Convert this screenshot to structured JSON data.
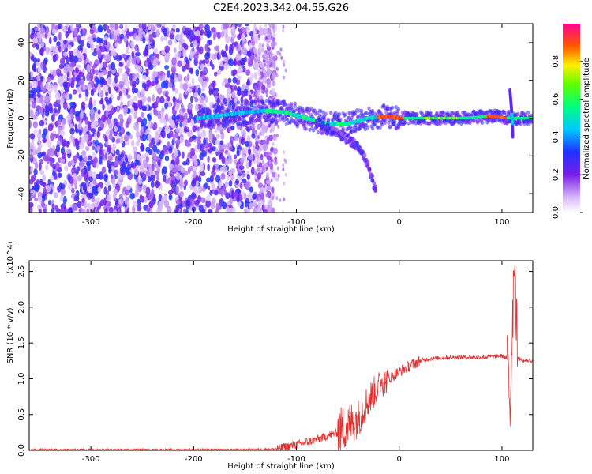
{
  "title": "C2E4.2023.342.04.55.G26",
  "colors": {
    "snr_line": "#e53030",
    "axis": "#000000"
  },
  "chart_data": [
    {
      "type": "heatmap",
      "title": "",
      "xlabel": "Height of straight line (km)",
      "ylabel": "Frequency (Hz)",
      "xlim": [
        -360,
        130
      ],
      "ylim": [
        -50,
        50
      ],
      "xticks": [
        "-300",
        "-200",
        "-100",
        "0",
        "100"
      ],
      "yticks": [
        "-40",
        "-20",
        "0",
        "20",
        "40"
      ],
      "colorbar": {
        "label": "Normalized spectral amplitude",
        "range": [
          0,
          1
        ],
        "ticks": [
          "0.0",
          "0.2",
          "0.4",
          "0.6",
          "0.8"
        ],
        "colormap": "rainbow (white-violet-blue-cyan-green-yellow-red-magenta)"
      },
      "features": {
        "noise_region_km": [
          -360,
          -120
        ],
        "signal_track": [
          {
            "x": -180,
            "y": 1
          },
          {
            "x": -150,
            "y": 3
          },
          {
            "x": -130,
            "y": 4
          },
          {
            "x": -110,
            "y": 3
          },
          {
            "x": -90,
            "y": 0
          },
          {
            "x": -70,
            "y": -3
          },
          {
            "x": -50,
            "y": -3
          },
          {
            "x": -30,
            "y": 0
          },
          {
            "x": -10,
            "y": 1
          },
          {
            "x": 0,
            "y": 0
          },
          {
            "x": 30,
            "y": 0
          },
          {
            "x": 60,
            "y": 0
          },
          {
            "x": 90,
            "y": 1
          },
          {
            "x": 110,
            "y": 0
          },
          {
            "x": 130,
            "y": 0
          }
        ],
        "descending_branch": [
          {
            "x": -80,
            "y": -2
          },
          {
            "x": -60,
            "y": -8
          },
          {
            "x": -40,
            "y": -15
          },
          {
            "x": -30,
            "y": -25
          },
          {
            "x": -22,
            "y": -40
          }
        ],
        "vertical_streak_km": 110
      }
    },
    {
      "type": "line",
      "title": "",
      "xlabel": "Height of straight line (km)",
      "ylabel": "SNR (10 * v/v)",
      "yscale_label": "(x10^4)",
      "xlim": [
        -360,
        130
      ],
      "ylim": [
        0,
        2.65
      ],
      "xticks": [
        "-300",
        "-200",
        "-100",
        "0",
        "100"
      ],
      "yticks": [
        "0.0",
        "0.5",
        "1.0",
        "1.5",
        "2.0",
        "2.5"
      ],
      "series": [
        {
          "x": [
            -360,
            -300,
            -200,
            -150,
            -120,
            -100,
            -80,
            -60,
            -40,
            -30,
            -20,
            -10,
            0,
            10,
            20,
            30,
            50,
            80,
            100,
            105,
            108,
            110,
            112,
            115,
            120,
            130
          ],
          "y": [
            0.01,
            0.01,
            0.01,
            0.01,
            0.02,
            0.08,
            0.15,
            0.25,
            0.45,
            0.7,
            0.9,
            1.0,
            1.1,
            1.18,
            1.25,
            1.28,
            1.3,
            1.3,
            1.32,
            1.28,
            0.6,
            1.8,
            2.6,
            1.3,
            1.25,
            1.25
          ]
        }
      ]
    }
  ]
}
